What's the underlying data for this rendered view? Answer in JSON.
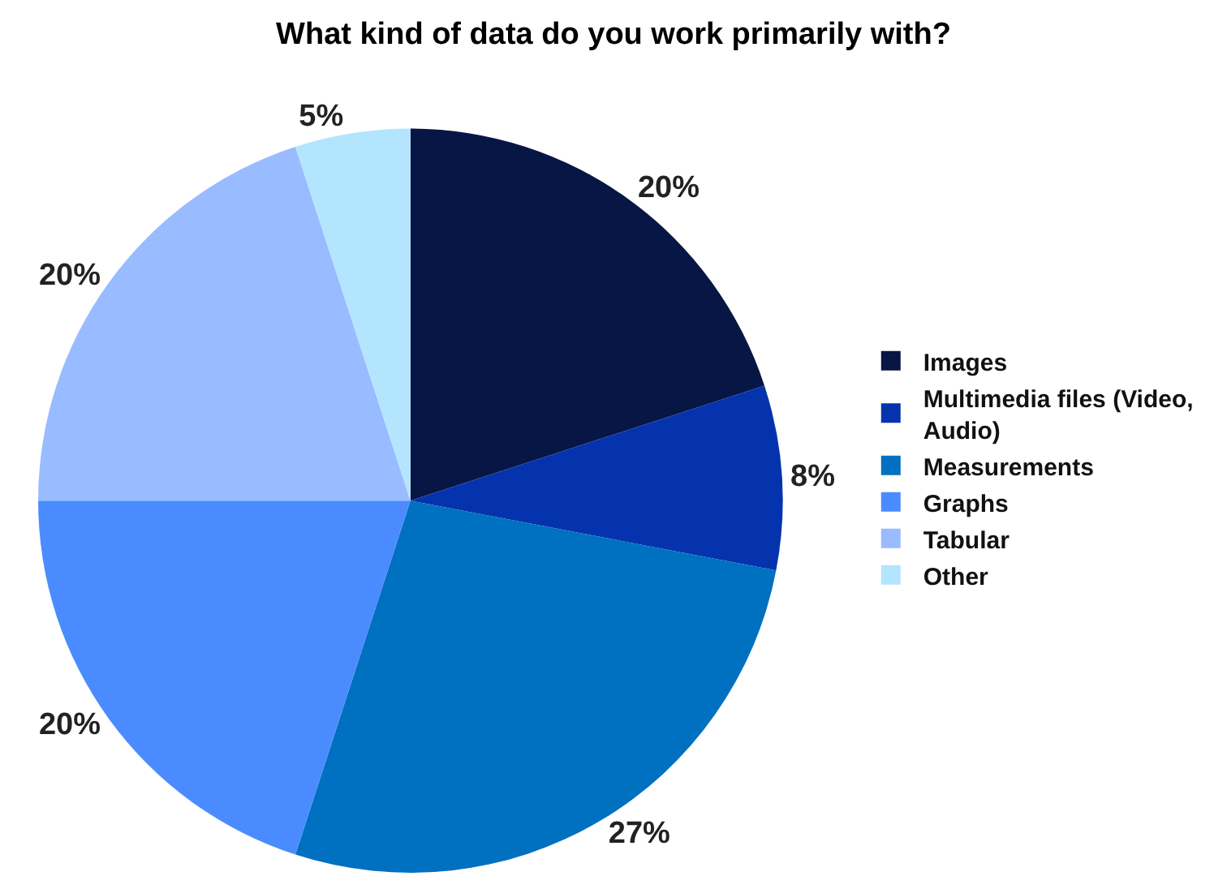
{
  "chart_data": {
    "type": "pie",
    "title": "What kind of data do you work primarily with?",
    "categories": [
      "Images",
      "Multimedia files (Video, Audio)",
      "Measurements",
      "Graphs",
      "Tabular",
      "Other"
    ],
    "values": [
      20,
      8,
      27,
      20,
      20,
      5
    ],
    "value_labels": [
      "20%",
      "8%",
      "27%",
      "20%",
      "20%",
      "5%"
    ],
    "colors": [
      "#081645",
      "#0433ad",
      "#0070c0",
      "#4a8cff",
      "#99bbff",
      "#b3e5ff"
    ],
    "legend": "right"
  }
}
